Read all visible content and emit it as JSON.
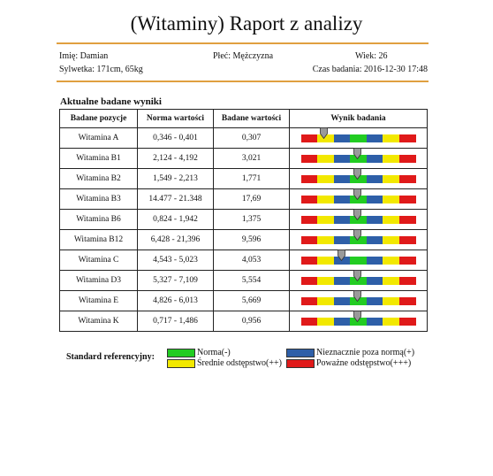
{
  "title": "(Witaminy) Raport z analizy",
  "patient": {
    "name": "Imię: Damian",
    "sex": "Płeć: Mężczyzna",
    "age": "Wiek: 26",
    "build": "Sylwetka: 171cm, 65kg",
    "test_time": "Czas badania: 2016-12-30 17:48"
  },
  "section_title": "Aktualne badane wyniki",
  "table": {
    "headers": [
      "Badane pozycje",
      "Norma wartości",
      "Badane wartości",
      "Wynik badania"
    ],
    "rows": [
      {
        "name": "Witamina A",
        "range": "0,346 - 0,401",
        "value": "0,307",
        "level": 0.2
      },
      {
        "name": "Witamina B1",
        "range": "2,124 - 4,192",
        "value": "3,021",
        "level": 0.49
      },
      {
        "name": "Witamina B2",
        "range": "1,549 - 2,213",
        "value": "1,771",
        "level": 0.49
      },
      {
        "name": "Witamina B3",
        "range": "14.477 - 21.348",
        "value": "17,69",
        "level": 0.49
      },
      {
        "name": "Witamina B6",
        "range": "0,824 - 1,942",
        "value": "1,375",
        "level": 0.49
      },
      {
        "name": "Witamina B12",
        "range": "6,428 - 21,396",
        "value": "9,596",
        "level": 0.49
      },
      {
        "name": "Witamina C",
        "range": "4,543 - 5,023",
        "value": "4,053",
        "level": 0.35
      },
      {
        "name": "Witamina D3",
        "range": "5,327 - 7,109",
        "value": "5,554",
        "level": 0.49
      },
      {
        "name": "Witamina E",
        "range": "4,826 - 6,013",
        "value": "5,669",
        "level": 0.49
      },
      {
        "name": "Witamina K",
        "range": "0,717 - 1,486",
        "value": "0,956",
        "level": 0.49
      }
    ]
  },
  "bar_colors": [
    "#e01a1a",
    "#f2e800",
    "#2e5fa8",
    "#22cc22",
    "#2e5fa8",
    "#f2e800",
    "#e01a1a"
  ],
  "marker_color": "#9a9a9a",
  "reference": {
    "label": "Standard referencyjny:",
    "items": [
      {
        "label": "Norma(-)",
        "color": "#22cc22"
      },
      {
        "label": "Nieznacznie poza normą(+)",
        "color": "#2e5fa8"
      },
      {
        "label": "Średnie odstępstwo(++)",
        "color": "#f2e800"
      },
      {
        "label": "Poważne odstępstwo(+++)",
        "color": "#e01a1a"
      }
    ]
  }
}
